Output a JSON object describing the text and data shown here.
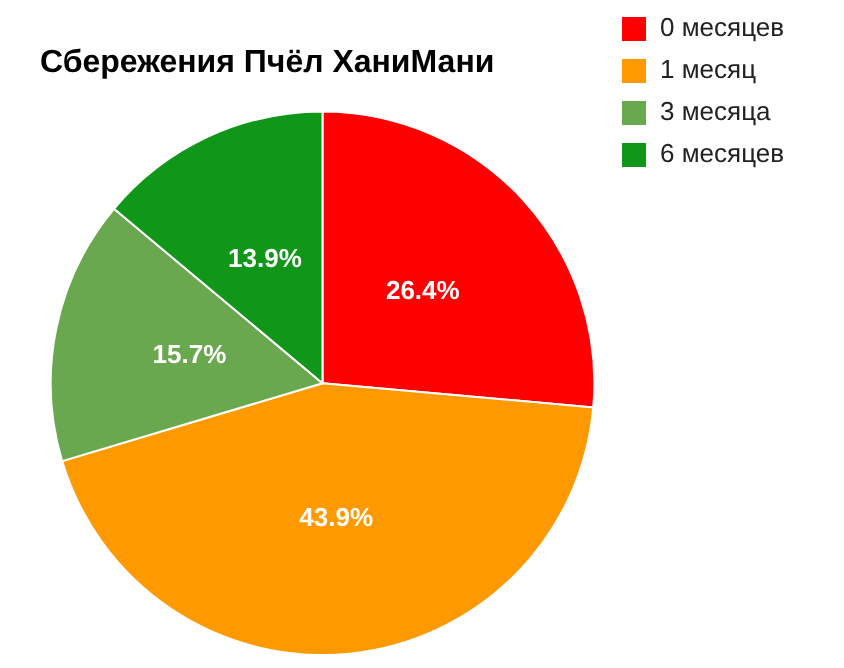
{
  "chart_data": {
    "type": "pie",
    "title": "Сбережения Пчёл ХаниМани",
    "categories": [
      "0 месяцев",
      "1 месяц",
      "3 месяца",
      "6 месяцев"
    ],
    "values": [
      26.4,
      43.9,
      15.7,
      13.9
    ],
    "colors": [
      "#ff0000",
      "#ff9900",
      "#6aa84f",
      "#109618"
    ],
    "value_labels": [
      "26.4%",
      "43.9%",
      "15.7%",
      "13.9%"
    ],
    "legend": "top right"
  }
}
